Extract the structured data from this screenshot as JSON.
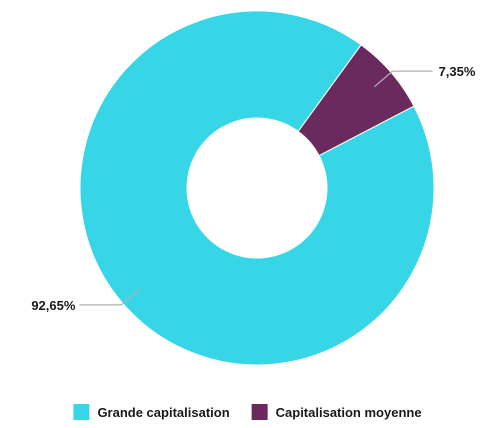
{
  "chart_data": {
    "type": "pie",
    "donut": true,
    "start_angle_deg": 0,
    "slices": [
      {
        "name": "Capitalisation moyenne",
        "value": 7.35,
        "label": "7,35%",
        "color": "#6b2a5e"
      },
      {
        "name": "Grande capitalisation",
        "value": 92.65,
        "label": "92,65%",
        "color": "#36d6e7"
      }
    ],
    "legend": {
      "position": "bottom",
      "items": [
        {
          "name": "Grande capitalisation",
          "color": "#36d6e7"
        },
        {
          "name": "Capitalisation moyenne",
          "color": "#6b2a5e"
        }
      ]
    }
  }
}
